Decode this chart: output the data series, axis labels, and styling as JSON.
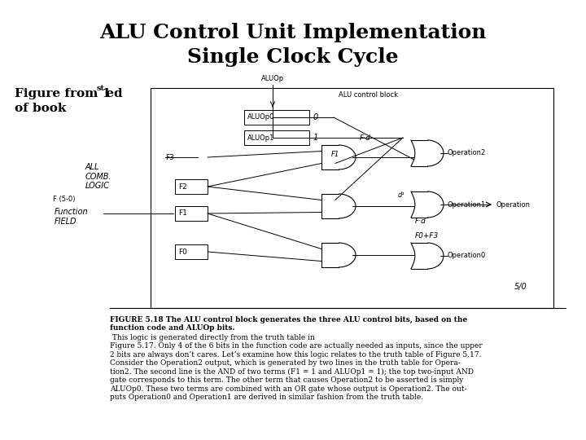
{
  "title_line1": "ALU Control Unit Implementation",
  "title_line2": "Single Clock Cycle",
  "title_fontsize": 18,
  "fig_label_fontsize": 11,
  "bg_color": "#ffffff",
  "caption_bold_part": "FIGURE 5.18 The ALU control block generates the three ALU control bits, based on the\nfunction code and ALUOp bits.",
  "caption_normal_part": " This logic is generated directly from the truth table in\nFigure 5.17. Only 4 of the 6 bits in the function code are actually needed as inputs, since the upper\n2 bits are always don’t cares. Let’s examine how this logic relates to the truth table of Figure 5.17.\nConsider the Operation2 output, which is generated by two lines in the truth table for Opera-\ntion2. The second line is the AND of two terms (F1 = 1 and ALUOp1 = 1); the top two-input AND\ngate corresponds to this term. The other term that causes Operation2 to be asserted is simply\nALUOp0. These two terms are combined with an OR gate whose output is Operation2. The out-\nputs Operation0 and Operation1 are derived in similar fashion from the truth table.",
  "caption_fontsize": 6.5
}
